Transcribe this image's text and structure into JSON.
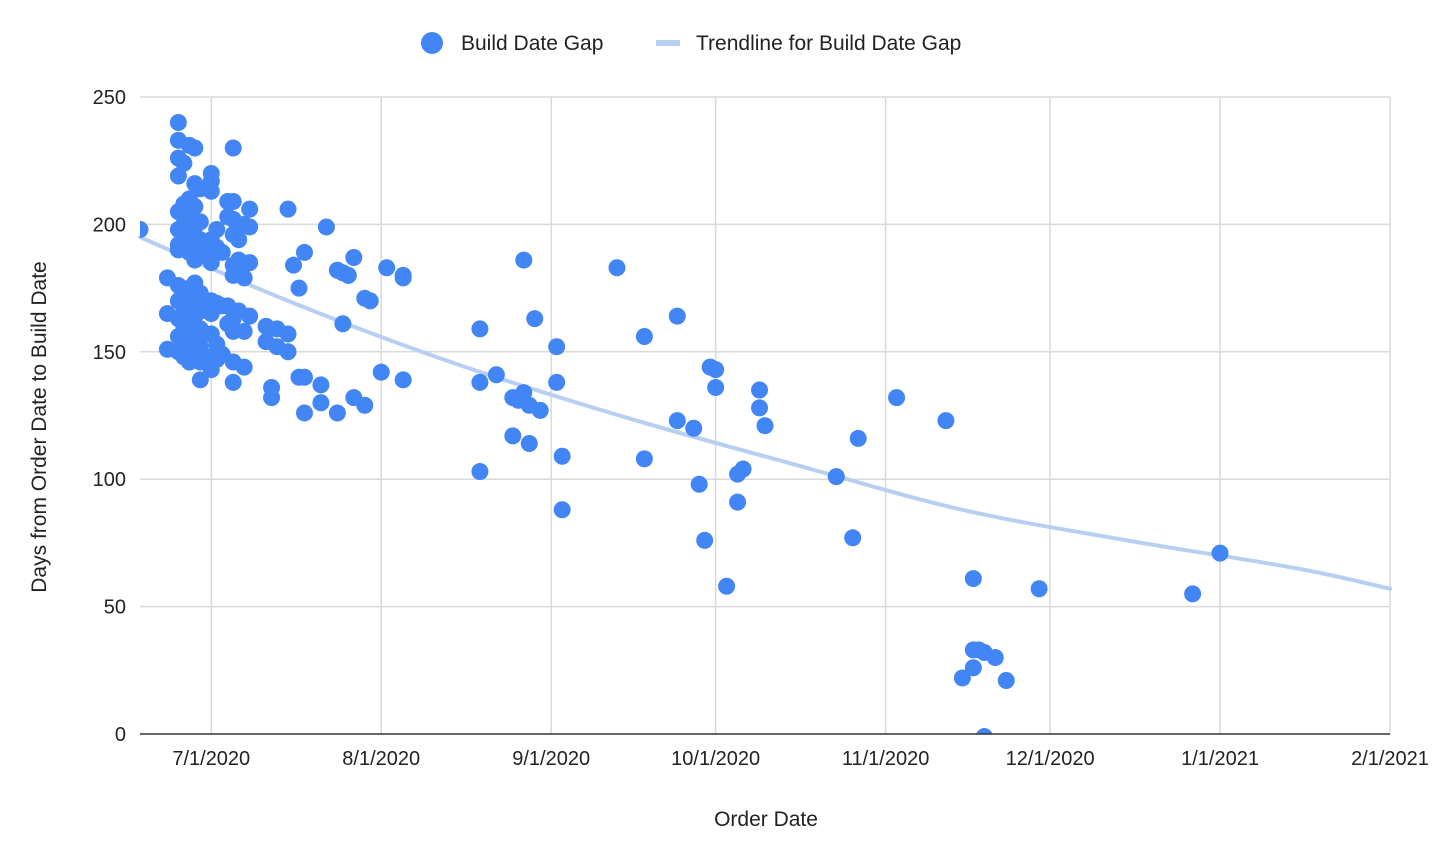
{
  "chart_data": {
    "type": "scatter",
    "title": "",
    "xlabel": "Order Date",
    "ylabel": "Days from Order Date to Build Date",
    "x_ticks": [
      "7/1/2020",
      "8/1/2020",
      "9/1/2020",
      "10/1/2020",
      "11/1/2020",
      "12/1/2020",
      "1/1/2021",
      "2/1/2021"
    ],
    "x_tick_dates": [
      "2020-07-01",
      "2020-08-01",
      "2020-09-01",
      "2020-10-01",
      "2020-11-01",
      "2020-12-01",
      "2021-01-01",
      "2021-02-01"
    ],
    "y_ticks": [
      0,
      50,
      100,
      150,
      200,
      250
    ],
    "xlim": [
      "2020-06-18",
      "2021-02-01"
    ],
    "ylim": [
      0,
      250
    ],
    "grid": true,
    "legend_position": "top-center",
    "colors": {
      "points": "#4285f4",
      "trendline": "#b7cff0",
      "grid": "#d9d9d9",
      "axis": "#333333"
    },
    "series": [
      {
        "name": "Build Date Gap",
        "kind": "points",
        "points": [
          [
            "2020-06-18",
            198
          ],
          [
            "2020-06-23",
            179
          ],
          [
            "2020-06-23",
            165
          ],
          [
            "2020-06-23",
            151
          ],
          [
            "2020-06-25",
            240
          ],
          [
            "2020-06-25",
            233
          ],
          [
            "2020-06-25",
            226
          ],
          [
            "2020-06-25",
            219
          ],
          [
            "2020-06-25",
            205
          ],
          [
            "2020-06-25",
            198
          ],
          [
            "2020-06-25",
            192
          ],
          [
            "2020-06-25",
            190
          ],
          [
            "2020-06-25",
            176
          ],
          [
            "2020-06-25",
            170
          ],
          [
            "2020-06-25",
            163
          ],
          [
            "2020-06-25",
            156
          ],
          [
            "2020-06-25",
            150
          ],
          [
            "2020-06-26",
            224
          ],
          [
            "2020-06-26",
            208
          ],
          [
            "2020-06-26",
            200
          ],
          [
            "2020-06-26",
            195
          ],
          [
            "2020-06-26",
            172
          ],
          [
            "2020-06-26",
            167
          ],
          [
            "2020-06-26",
            160
          ],
          [
            "2020-06-26",
            153
          ],
          [
            "2020-06-26",
            148
          ],
          [
            "2020-06-27",
            231
          ],
          [
            "2020-06-27",
            210
          ],
          [
            "2020-06-27",
            203
          ],
          [
            "2020-06-27",
            197
          ],
          [
            "2020-06-27",
            189
          ],
          [
            "2020-06-27",
            175
          ],
          [
            "2020-06-27",
            168
          ],
          [
            "2020-06-27",
            162
          ],
          [
            "2020-06-27",
            155
          ],
          [
            "2020-06-27",
            146
          ],
          [
            "2020-06-28",
            230
          ],
          [
            "2020-06-28",
            216
          ],
          [
            "2020-06-28",
            207
          ],
          [
            "2020-06-28",
            199
          ],
          [
            "2020-06-28",
            193
          ],
          [
            "2020-06-28",
            186
          ],
          [
            "2020-06-28",
            177
          ],
          [
            "2020-06-28",
            171
          ],
          [
            "2020-06-28",
            164
          ],
          [
            "2020-06-28",
            158
          ],
          [
            "2020-06-28",
            149
          ],
          [
            "2020-06-29",
            214
          ],
          [
            "2020-06-29",
            201
          ],
          [
            "2020-06-29",
            194
          ],
          [
            "2020-06-29",
            188
          ],
          [
            "2020-06-29",
            173
          ],
          [
            "2020-06-29",
            166
          ],
          [
            "2020-06-29",
            159
          ],
          [
            "2020-06-29",
            152
          ],
          [
            "2020-06-29",
            146
          ],
          [
            "2020-06-29",
            139
          ],
          [
            "2020-06-30",
            191
          ],
          [
            "2020-06-30",
            169
          ],
          [
            "2020-06-30",
            157
          ],
          [
            "2020-07-01",
            220
          ],
          [
            "2020-07-01",
            217
          ],
          [
            "2020-07-01",
            213
          ],
          [
            "2020-07-01",
            194
          ],
          [
            "2020-07-01",
            185
          ],
          [
            "2020-07-01",
            170
          ],
          [
            "2020-07-01",
            165
          ],
          [
            "2020-07-01",
            157
          ],
          [
            "2020-07-01",
            148
          ],
          [
            "2020-07-01",
            143
          ],
          [
            "2020-07-02",
            198
          ],
          [
            "2020-07-02",
            191
          ],
          [
            "2020-07-02",
            169
          ],
          [
            "2020-07-02",
            153
          ],
          [
            "2020-07-02",
            147
          ],
          [
            "2020-07-03",
            189
          ],
          [
            "2020-07-03",
            168
          ],
          [
            "2020-07-03",
            149
          ],
          [
            "2020-07-04",
            209
          ],
          [
            "2020-07-04",
            203
          ],
          [
            "2020-07-04",
            168
          ],
          [
            "2020-07-04",
            161
          ],
          [
            "2020-07-05",
            230
          ],
          [
            "2020-07-05",
            209
          ],
          [
            "2020-07-05",
            202
          ],
          [
            "2020-07-05",
            196
          ],
          [
            "2020-07-05",
            184
          ],
          [
            "2020-07-05",
            180
          ],
          [
            "2020-07-05",
            163
          ],
          [
            "2020-07-05",
            158
          ],
          [
            "2020-07-05",
            146
          ],
          [
            "2020-07-05",
            138
          ],
          [
            "2020-07-06",
            194
          ],
          [
            "2020-07-06",
            186
          ],
          [
            "2020-07-06",
            181
          ],
          [
            "2020-07-06",
            166
          ],
          [
            "2020-07-07",
            200
          ],
          [
            "2020-07-07",
            184
          ],
          [
            "2020-07-07",
            179
          ],
          [
            "2020-07-07",
            158
          ],
          [
            "2020-07-07",
            144
          ],
          [
            "2020-07-08",
            206
          ],
          [
            "2020-07-08",
            199
          ],
          [
            "2020-07-08",
            185
          ],
          [
            "2020-07-08",
            164
          ],
          [
            "2020-07-11",
            160
          ],
          [
            "2020-07-11",
            154
          ],
          [
            "2020-07-12",
            136
          ],
          [
            "2020-07-12",
            132
          ],
          [
            "2020-07-13",
            159
          ],
          [
            "2020-07-13",
            152
          ],
          [
            "2020-07-15",
            206
          ],
          [
            "2020-07-15",
            157
          ],
          [
            "2020-07-15",
            150
          ],
          [
            "2020-07-16",
            184
          ],
          [
            "2020-07-17",
            175
          ],
          [
            "2020-07-17",
            140
          ],
          [
            "2020-07-18",
            189
          ],
          [
            "2020-07-18",
            140
          ],
          [
            "2020-07-18",
            126
          ],
          [
            "2020-07-21",
            137
          ],
          [
            "2020-07-21",
            130
          ],
          [
            "2020-07-22",
            199
          ],
          [
            "2020-07-24",
            182
          ],
          [
            "2020-07-24",
            126
          ],
          [
            "2020-07-25",
            181
          ],
          [
            "2020-07-25",
            161
          ],
          [
            "2020-07-26",
            180
          ],
          [
            "2020-07-27",
            187
          ],
          [
            "2020-07-27",
            132
          ],
          [
            "2020-07-29",
            171
          ],
          [
            "2020-07-29",
            129
          ],
          [
            "2020-07-30",
            170
          ],
          [
            "2020-08-01",
            142
          ],
          [
            "2020-08-02",
            183
          ],
          [
            "2020-08-05",
            180
          ],
          [
            "2020-08-05",
            179
          ],
          [
            "2020-08-05",
            139
          ],
          [
            "2020-08-19",
            159
          ],
          [
            "2020-08-19",
            138
          ],
          [
            "2020-08-19",
            103
          ],
          [
            "2020-08-22",
            141
          ],
          [
            "2020-08-25",
            132
          ],
          [
            "2020-08-25",
            117
          ],
          [
            "2020-08-26",
            131
          ],
          [
            "2020-08-27",
            186
          ],
          [
            "2020-08-27",
            134
          ],
          [
            "2020-08-28",
            129
          ],
          [
            "2020-08-28",
            114
          ],
          [
            "2020-08-29",
            163
          ],
          [
            "2020-08-30",
            127
          ],
          [
            "2020-09-02",
            152
          ],
          [
            "2020-09-02",
            138
          ],
          [
            "2020-09-03",
            109
          ],
          [
            "2020-09-03",
            88
          ],
          [
            "2020-09-13",
            183
          ],
          [
            "2020-09-18",
            156
          ],
          [
            "2020-09-18",
            108
          ],
          [
            "2020-09-24",
            164
          ],
          [
            "2020-09-24",
            123
          ],
          [
            "2020-09-27",
            120
          ],
          [
            "2020-09-28",
            98
          ],
          [
            "2020-09-29",
            76
          ],
          [
            "2020-09-30",
            144
          ],
          [
            "2020-10-01",
            143
          ],
          [
            "2020-10-01",
            136
          ],
          [
            "2020-10-03",
            58
          ],
          [
            "2020-10-05",
            102
          ],
          [
            "2020-10-05",
            91
          ],
          [
            "2020-10-06",
            104
          ],
          [
            "2020-10-09",
            135
          ],
          [
            "2020-10-09",
            128
          ],
          [
            "2020-10-10",
            121
          ],
          [
            "2020-10-23",
            101
          ],
          [
            "2020-10-26",
            77
          ],
          [
            "2020-10-27",
            116
          ],
          [
            "2020-11-03",
            132
          ],
          [
            "2020-11-12",
            123
          ],
          [
            "2020-11-15",
            22
          ],
          [
            "2020-11-17",
            61
          ],
          [
            "2020-11-17",
            33
          ],
          [
            "2020-11-17",
            26
          ],
          [
            "2020-11-18",
            33
          ],
          [
            "2020-11-19",
            32
          ],
          [
            "2020-11-19",
            -1
          ],
          [
            "2020-11-21",
            30
          ],
          [
            "2020-11-23",
            21
          ],
          [
            "2020-11-29",
            57
          ],
          [
            "2020-12-27",
            55
          ],
          [
            "2021-01-01",
            71
          ]
        ]
      },
      {
        "name": "Trendline for Build Date Gap",
        "kind": "trendline",
        "points": [
          [
            "2020-06-18",
            195
          ],
          [
            "2020-07-15",
            170
          ],
          [
            "2020-08-15",
            145
          ],
          [
            "2020-09-15",
            124
          ],
          [
            "2020-10-15",
            106
          ],
          [
            "2020-11-15",
            88
          ],
          [
            "2020-12-15",
            76
          ],
          [
            "2021-01-15",
            65
          ],
          [
            "2021-02-01",
            57
          ]
        ]
      }
    ]
  }
}
